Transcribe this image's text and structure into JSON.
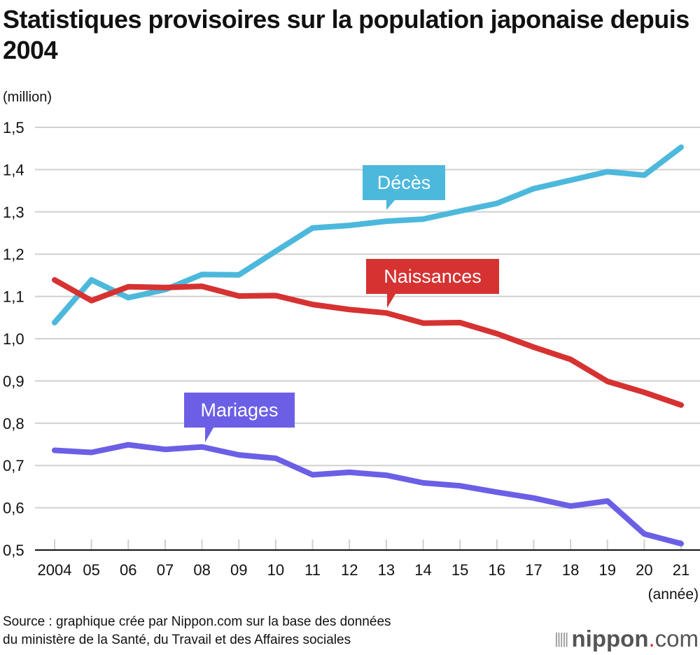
{
  "header": {
    "title": "Statistiques provisoires sur la population japonaise depuis 2004",
    "unit_label": "(million)"
  },
  "footer": {
    "source_line1": "Source : graphique crée par Nippon.com sur la base des données",
    "source_line2": "du ministère de la Santé, du Travail et des Affaires sociales",
    "logo_brand": "nippon",
    "logo_dot": ".",
    "logo_suffix": "com"
  },
  "chart_data": {
    "type": "line",
    "title": "Statistiques provisoires sur la population japonaise depuis 2004",
    "xlabel": "(année)",
    "ylabel": "(million)",
    "ylim": [
      0.5,
      1.5
    ],
    "yticks": [
      "0,5",
      "0,6",
      "0,7",
      "0,8",
      "0,9",
      "1,0",
      "1,1",
      "1,2",
      "1,3",
      "1,4",
      "1,5"
    ],
    "grid": true,
    "categories": [
      "2004",
      "05",
      "06",
      "07",
      "08",
      "09",
      "10",
      "11",
      "12",
      "13",
      "14",
      "15",
      "16",
      "17",
      "18",
      "19",
      "20",
      "21"
    ],
    "series": [
      {
        "name": "Décès",
        "color": "#4cb8dc",
        "label_at_index": 9,
        "values": [
          1.038,
          1.139,
          1.097,
          1.116,
          1.152,
          1.151,
          1.207,
          1.262,
          1.268,
          1.278,
          1.283,
          1.302,
          1.32,
          1.355,
          1.375,
          1.395,
          1.387,
          1.453
        ]
      },
      {
        "name": "Naissances",
        "color": "#d63232",
        "label_at_index": 9,
        "values": [
          1.139,
          1.09,
          1.123,
          1.121,
          1.124,
          1.101,
          1.102,
          1.081,
          1.069,
          1.061,
          1.037,
          1.038,
          1.012,
          0.98,
          0.951,
          0.899,
          0.873,
          0.843
        ]
      },
      {
        "name": "Mariages",
        "color": "#6b5fe6",
        "label_at_index": 4,
        "values": [
          0.736,
          0.731,
          0.749,
          0.738,
          0.744,
          0.725,
          0.717,
          0.678,
          0.684,
          0.677,
          0.659,
          0.652,
          0.637,
          0.623,
          0.604,
          0.616,
          0.538,
          0.515
        ]
      }
    ]
  }
}
